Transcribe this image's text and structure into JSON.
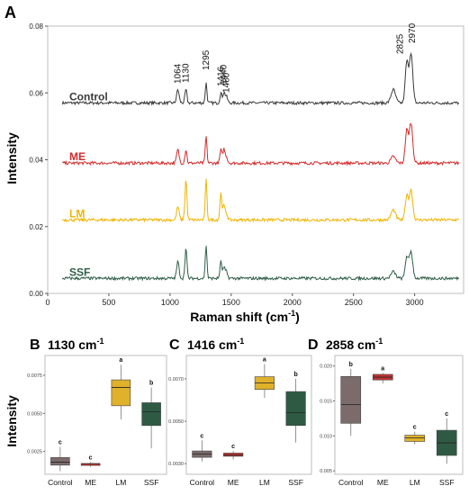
{
  "panel_a": {
    "letter": "A",
    "ylabel": "Intensity",
    "xlabel": "Raman shift (cm",
    "xlabel_sup": "-1",
    "xlabel_close": ")",
    "xticks": [
      "0",
      "500",
      "1000",
      "1500",
      "2000",
      "2500",
      "3000"
    ],
    "yticks": [
      "0.00",
      "0.02",
      "0.04",
      "0.06",
      "0.08"
    ],
    "peak_labels": [
      "1064",
      "1130",
      "1295",
      "1416",
      "1440",
      "1460",
      "2825",
      "2970"
    ]
  },
  "panel_b": {
    "letter": "B",
    "title": "1130 cm",
    "title_sup": "-1",
    "ylabel": "Intensity"
  },
  "panel_c": {
    "letter": "C",
    "title": "1416 cm",
    "title_sup": "-1"
  },
  "panel_d": {
    "letter": "D",
    "title": "2858 cm",
    "title_sup": "-1"
  },
  "colors": {
    "Control": "#3a3a3a",
    "ME": "#d42a2a",
    "LM": "#f0b400",
    "SSF": "#2f5e48",
    "box_Control": "#7b6b6b",
    "box_ME": "#c23434",
    "box_LM": "#e0b12a",
    "box_SSF": "#2e5a44"
  },
  "chart_data": [
    {
      "type": "line",
      "xlim": [
        0,
        3400
      ],
      "ylim": [
        0,
        0.08
      ],
      "x_peaks": [
        1064,
        1130,
        1295,
        1416,
        1440,
        1460,
        2825,
        2970
      ],
      "series": [
        {
          "name": "Control",
          "baseline": 0.057,
          "peaks": [
            0.004,
            0.004,
            0.006,
            0.003,
            0.003,
            0.002,
            0.004,
            0.015
          ]
        },
        {
          "name": "ME",
          "baseline": 0.039,
          "peaks": [
            0.004,
            0.004,
            0.008,
            0.004,
            0.004,
            0.002,
            0.002,
            0.012
          ]
        },
        {
          "name": "LM",
          "baseline": 0.022,
          "peaks": [
            0.004,
            0.012,
            0.012,
            0.008,
            0.004,
            0.002,
            0.003,
            0.009
          ]
        },
        {
          "name": "SSF",
          "baseline": 0.0045,
          "peaks": [
            0.005,
            0.009,
            0.01,
            0.005,
            0.003,
            0.002,
            0.002,
            0.008
          ]
        }
      ]
    },
    {
      "type": "box",
      "title": "1130 cm-1",
      "ylabel": "Intensity",
      "categories": [
        "Control",
        "ME",
        "LM",
        "SSF"
      ],
      "yticks": [
        0.0025,
        0.005,
        0.0075
      ],
      "ytick_labels": [
        "0.0025",
        "0.0050",
        "0.0075"
      ],
      "ylim": [
        0.001,
        0.0088
      ],
      "boxes": [
        {
          "group": "Control",
          "min": 0.0012,
          "q1": 0.0016,
          "median": 0.0018,
          "q3": 0.0021,
          "max": 0.0028,
          "letter": "c"
        },
        {
          "group": "ME",
          "min": 0.0015,
          "q1": 0.0016,
          "median": 0.0017,
          "q3": 0.0017,
          "max": 0.0018,
          "letter": "c"
        },
        {
          "group": "LM",
          "min": 0.0046,
          "q1": 0.0055,
          "median": 0.0067,
          "q3": 0.0072,
          "max": 0.0082,
          "letter": "a"
        },
        {
          "group": "SSF",
          "min": 0.0027,
          "q1": 0.0042,
          "median": 0.0051,
          "q3": 0.0057,
          "max": 0.0067,
          "letter": "b"
        }
      ]
    },
    {
      "type": "box",
      "title": "1416 cm-1",
      "categories": [
        "Control",
        "ME",
        "LM",
        "SSF"
      ],
      "yticks": [
        0.003,
        0.005,
        0.007
      ],
      "ytick_labels": [
        "0.0030",
        "0.0050",
        "0.0070"
      ],
      "ylim": [
        0.0025,
        0.0081
      ],
      "boxes": [
        {
          "group": "Control",
          "min": 0.0031,
          "q1": 0.0033,
          "median": 0.00345,
          "q3": 0.0036,
          "max": 0.0041,
          "letter": "c"
        },
        {
          "group": "ME",
          "min": 0.0032,
          "q1": 0.00335,
          "median": 0.0034,
          "q3": 0.0035,
          "max": 0.0036,
          "letter": "c"
        },
        {
          "group": "LM",
          "min": 0.0061,
          "q1": 0.0065,
          "median": 0.0068,
          "q3": 0.0071,
          "max": 0.0077,
          "letter": "a"
        },
        {
          "group": "SSF",
          "min": 0.004,
          "q1": 0.0048,
          "median": 0.0054,
          "q3": 0.0064,
          "max": 0.007,
          "letter": "b"
        }
      ]
    },
    {
      "type": "box",
      "title": "2858 cm-1",
      "categories": [
        "Control",
        "ME",
        "LM",
        "SSF"
      ],
      "yticks": [
        0.005,
        0.01,
        0.015,
        0.02
      ],
      "ytick_labels": [
        "0.005",
        "0.010",
        "0.015",
        "0.020"
      ],
      "ylim": [
        0.0045,
        0.0215
      ],
      "boxes": [
        {
          "group": "Control",
          "min": 0.01,
          "q1": 0.0118,
          "median": 0.0145,
          "q3": 0.0185,
          "max": 0.0196,
          "letter": "b"
        },
        {
          "group": "ME",
          "min": 0.0175,
          "q1": 0.018,
          "median": 0.0184,
          "q3": 0.0188,
          "max": 0.019,
          "letter": "a"
        },
        {
          "group": "LM",
          "min": 0.0088,
          "q1": 0.0092,
          "median": 0.0097,
          "q3": 0.0101,
          "max": 0.0106,
          "letter": "c"
        },
        {
          "group": "SSF",
          "min": 0.006,
          "q1": 0.0072,
          "median": 0.009,
          "q3": 0.0108,
          "max": 0.0125,
          "letter": "c"
        }
      ]
    }
  ]
}
